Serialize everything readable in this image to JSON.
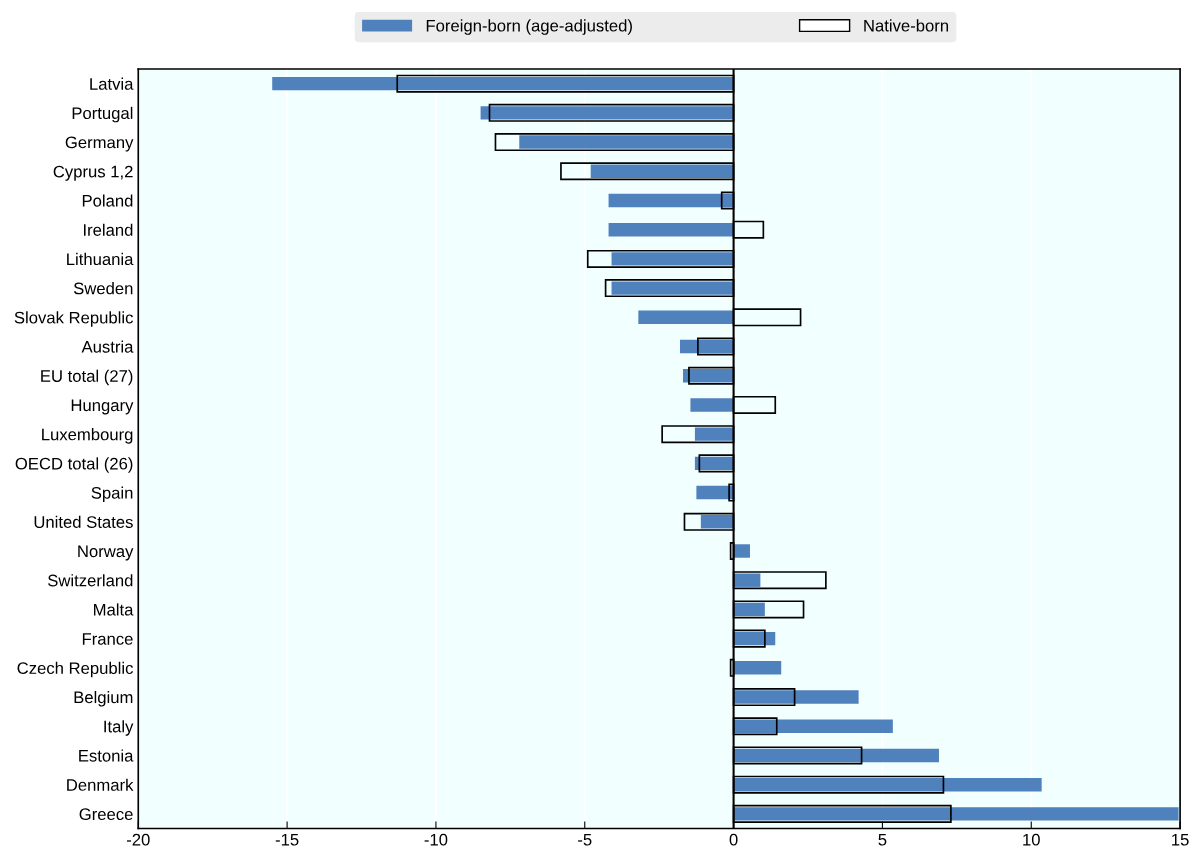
{
  "chart_data": {
    "type": "bar",
    "orientation": "horizontal",
    "categories": [
      "Latvia",
      "Portugal",
      "Germany",
      "Cyprus 1,2",
      "Poland",
      "Ireland",
      "Lithuania",
      "Sweden",
      "Slovak Republic",
      "Austria",
      "EU total (27)",
      "Hungary",
      "Luxembourg",
      "OECD total (26)",
      "Spain",
      "United States",
      "Norway",
      "Switzerland",
      "Malta",
      "France",
      "Czech Republic",
      "Belgium",
      "Italy",
      "Estonia",
      "Denmark",
      "Greece"
    ],
    "series": [
      {
        "name": "Foreign-born (age-adjusted)",
        "color": "#4f81bd",
        "values": [
          -15.5,
          -8.5,
          -7.2,
          -4.8,
          -4.2,
          -4.2,
          -4.1,
          -4.1,
          -3.2,
          -1.8,
          -1.7,
          -1.45,
          -1.3,
          -1.3,
          -1.25,
          -1.1,
          0.55,
          0.9,
          1.05,
          1.4,
          1.6,
          4.2,
          5.35,
          6.9,
          10.35,
          14.95
        ]
      },
      {
        "name": "Native-born",
        "color": "#000000",
        "values": [
          -11.3,
          -8.2,
          -8.0,
          -5.8,
          -0.4,
          1.0,
          -4.9,
          -4.3,
          2.25,
          -1.2,
          -1.5,
          1.4,
          -2.4,
          -1.15,
          -0.15,
          -1.65,
          -0.1,
          3.1,
          2.35,
          1.05,
          -0.1,
          2.05,
          1.45,
          4.3,
          7.05,
          7.3
        ]
      }
    ],
    "xlim": [
      -20,
      15
    ],
    "xticks": [
      -20,
      -15,
      -10,
      -5,
      0,
      5,
      10,
      15
    ],
    "grid": "x",
    "legend": "top"
  }
}
